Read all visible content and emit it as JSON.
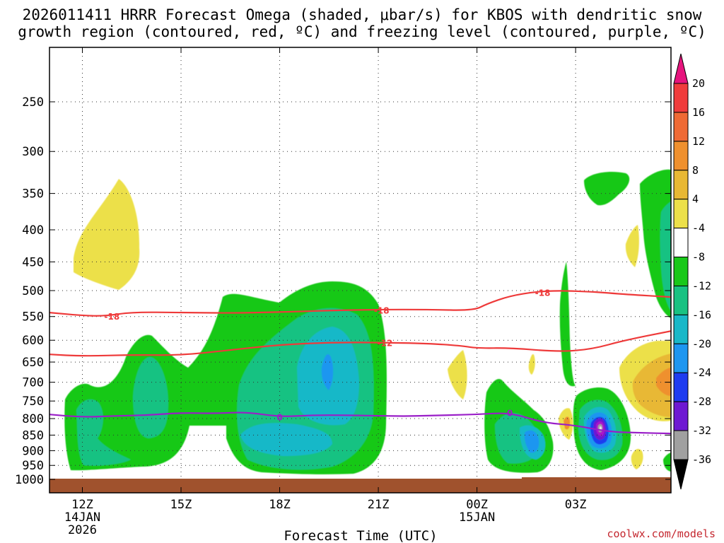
{
  "chart_data": {
    "type": "time-height",
    "title_line1": "2026011411 HRRR Forecast Omega (shaded, μbar/s) for KBOS with dendritic snow",
    "title_line2": "growth region (contoured, red, ºC) and freezing level (contoured, purple, ºC)",
    "xlabel": "Forecast Time (UTC)",
    "credit": "coolwx.com/models",
    "x_ticks": [
      {
        "t": 12,
        "label": "12Z",
        "sub1": "14JAN",
        "sub2": "2026"
      },
      {
        "t": 15,
        "label": "15Z",
        "sub1": "",
        "sub2": ""
      },
      {
        "t": 18,
        "label": "18Z",
        "sub1": "",
        "sub2": ""
      },
      {
        "t": 21,
        "label": "21Z",
        "sub1": "",
        "sub2": ""
      },
      {
        "t": 24,
        "label": "00Z",
        "sub1": "15JAN",
        "sub2": ""
      },
      {
        "t": 27,
        "label": "03Z",
        "sub1": "",
        "sub2": ""
      }
    ],
    "xlim": [
      11,
      29.9
    ],
    "y_ticks": [
      250,
      300,
      350,
      400,
      450,
      500,
      550,
      600,
      650,
      700,
      750,
      800,
      850,
      900,
      950,
      1000
    ],
    "ylim": [
      1000,
      200
    ],
    "colorbar": {
      "ticks": [
        "20",
        "16",
        "12",
        "8",
        "4",
        "-4",
        "-8",
        "-12",
        "-16",
        "-20",
        "-24",
        "-28",
        "-32",
        "-36"
      ],
      "colors": [
        "#f03c3c",
        "#ef6a35",
        "#ef902e",
        "#e8b834",
        "#ece04a",
        "#ffffff",
        "#19c819",
        "#19c282",
        "#19b8c8",
        "#1e96f0",
        "#1e3cf0",
        "#6e19d2",
        "#aa14c8",
        "#a0a0a0"
      ],
      "top_arrow": "#e6147d",
      "bottom_arrow": "#000000"
    },
    "omega_regions": [
      {
        "name": "rising-motion-core-1",
        "level": "-8"
      },
      {
        "name": "rising-motion-core-2",
        "level": "-16"
      },
      {
        "name": "rising-motion-core-3",
        "level": "-32"
      }
    ],
    "contours": [
      {
        "name": "dgz-top",
        "label": "-18",
        "color": "#ee3a3a",
        "points": [
          [
            11,
            542
          ],
          [
            12,
            548
          ],
          [
            12.7,
            549
          ],
          [
            13.5,
            541
          ],
          [
            15,
            542
          ],
          [
            16.5,
            543
          ],
          [
            18,
            541
          ],
          [
            19.5,
            538
          ],
          [
            21,
            536
          ],
          [
            22.5,
            536
          ],
          [
            23.9,
            538
          ],
          [
            24.3,
            525
          ],
          [
            25,
            510
          ],
          [
            25.8,
            502
          ],
          [
            26.5,
            500
          ],
          [
            27.5,
            502
          ],
          [
            28.5,
            507
          ],
          [
            29.9,
            512
          ]
        ],
        "label_at": [
          [
            12.9,
            549
          ],
          [
            21.1,
            537
          ],
          [
            26.0,
            503
          ]
        ]
      },
      {
        "name": "dgz-bottom",
        "label": "-12",
        "color": "#ee3a3a",
        "points": [
          [
            11,
            632
          ],
          [
            12,
            636
          ],
          [
            13.5,
            633
          ],
          [
            15,
            634
          ],
          [
            16.5,
            622
          ],
          [
            18,
            610
          ],
          [
            19.5,
            605
          ],
          [
            21,
            605
          ],
          [
            22.5,
            607
          ],
          [
            23.5,
            612
          ],
          [
            24,
            618
          ],
          [
            25,
            617
          ],
          [
            26.5,
            626
          ],
          [
            27.5,
            620
          ],
          [
            28.5,
            600
          ],
          [
            29.9,
            580
          ]
        ],
        "label_at": [
          [
            21.2,
            605
          ]
        ]
      },
      {
        "name": "freezing-level",
        "label": "0",
        "color": "#9a1ec8",
        "points": [
          [
            11,
            788
          ],
          [
            12,
            796
          ],
          [
            13,
            792
          ],
          [
            14,
            790
          ],
          [
            15,
            783
          ],
          [
            16,
            785
          ],
          [
            17,
            781
          ],
          [
            18,
            795
          ],
          [
            19,
            790
          ],
          [
            20,
            790
          ],
          [
            21,
            792
          ],
          [
            22,
            793
          ],
          [
            23,
            790
          ],
          [
            24,
            788
          ],
          [
            25,
            782
          ],
          [
            26,
            812
          ],
          [
            27,
            820
          ],
          [
            28,
            840
          ],
          [
            29,
            843
          ],
          [
            29.9,
            845
          ]
        ],
        "label_at": [
          [
            18,
            795
          ],
          [
            25,
            782
          ]
        ]
      }
    ]
  }
}
